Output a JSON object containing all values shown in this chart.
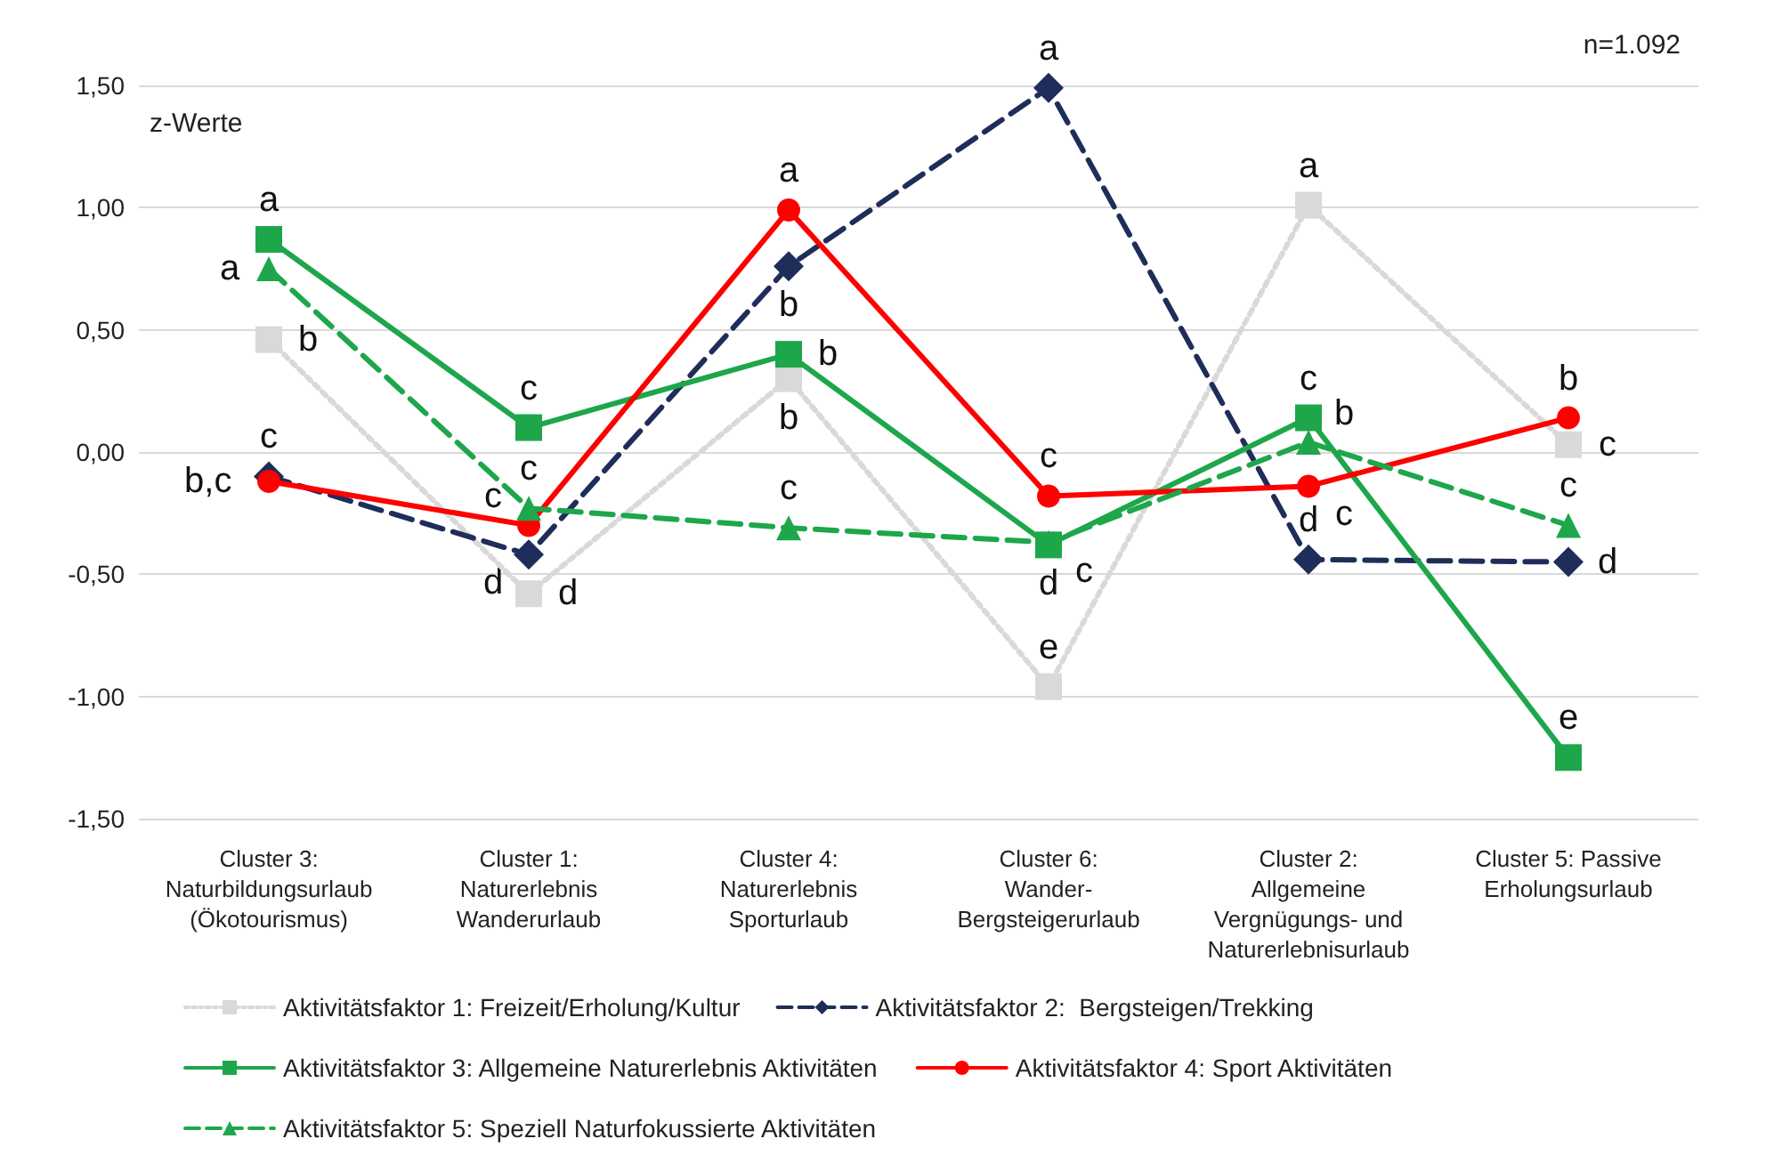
{
  "chart_data": {
    "type": "line",
    "ylabel": "z-Werte",
    "categories": [
      "Cluster 3:\nNaturbildungsurlaub\n(Ökotourismus)",
      "Cluster 1:\nNaturerlebnis\nWanderurlaub",
      "Cluster 4:\nNaturerlebnis\nSporturlaub",
      "Cluster 6:\nWander-\nBergsteigerurlaub",
      "Cluster 2:\nAllgemeine\nVergnügungs- und\nNaturerlebnisurlaub",
      "Cluster 5: Passive\nErholungsurlaub"
    ],
    "series": [
      {
        "name": "Aktivitätsfaktor 1: Freizeit/Erholung/Kultur",
        "color": "#d9d9d9",
        "line_style": "dotted",
        "marker": "square",
        "values": [
          0.46,
          -0.58,
          0.3,
          -0.96,
          1.01,
          0.03
        ]
      },
      {
        "name": "Aktivitätsfaktor 2:  Bergsteigen/Trekking",
        "color": "#1f2d5a",
        "line_style": "dashed",
        "marker": "diamond",
        "values": [
          -0.1,
          -0.42,
          0.76,
          1.49,
          -0.44,
          -0.45
        ]
      },
      {
        "name": "Aktivitätsfaktor 3: Allgemeine Naturerlebnis Aktivitäten",
        "color": "#1ea64b",
        "line_style": "solid",
        "marker": "square",
        "values": [
          0.87,
          0.1,
          0.4,
          -0.38,
          0.14,
          -1.25
        ]
      },
      {
        "name": "Aktivitätsfaktor 4: Sport Aktivitäten",
        "color": "#ff0000",
        "line_style": "solid",
        "marker": "circle",
        "values": [
          -0.12,
          -0.3,
          0.99,
          -0.18,
          -0.14,
          0.14
        ]
      },
      {
        "name": "Aktivitätsfaktor 5: Speziell Naturfokussierte Aktivitäten",
        "color": "#1ea64b",
        "line_style": "dashed",
        "marker": "triangle",
        "values": [
          0.75,
          -0.23,
          -0.31,
          -0.37,
          0.04,
          -0.3
        ]
      }
    ],
    "ylim": [
      -1.5,
      1.5
    ],
    "yticks": [
      {
        "value": -1.5,
        "label": "-1,50"
      },
      {
        "value": -1,
        "label": "-1,00"
      },
      {
        "value": -0.5,
        "label": "-0,50"
      },
      {
        "value": 0,
        "label": "0,00"
      },
      {
        "value": 0.5,
        "label": "0,50"
      },
      {
        "value": 1,
        "label": "1,00"
      },
      {
        "value": 1.5,
        "label": "1,50"
      }
    ],
    "grid": "y",
    "legend": "bottom",
    "annotations": [
      "n=1.092",
      {
        "text": "a",
        "x": "Cluster 3:\nNaturbildungsurlaub\n(Ökotourismus)",
        "y": 0.87
      },
      {
        "text": "a",
        "x": "Cluster 3:\nNaturbildungsurlaub\n(Ökotourismus)",
        "y": 0.75
      },
      {
        "text": "b",
        "x": "Cluster 3:\nNaturbildungsurlaub\n(Ökotourismus)",
        "y": 0.46
      },
      {
        "text": "c",
        "x": "Cluster 3:\nNaturbildungsurlaub\n(Ökotourismus)",
        "y": -0.1
      },
      {
        "text": "b,c",
        "x": "Cluster 3:\nNaturbildungsurlaub\n(Ökotourismus)",
        "y": -0.12
      },
      {
        "text": "c",
        "x": "Cluster 1:\nNaturerlebnis\nWanderurlaub",
        "y": 0.1
      },
      {
        "text": "c",
        "x": "Cluster 1:\nNaturerlebnis\nWanderurlaub",
        "y": -0.23
      },
      {
        "text": "c",
        "x": "Cluster 1:\nNaturerlebnis\nWanderurlaub",
        "y": -0.3
      },
      {
        "text": "d",
        "x": "Cluster 1:\nNaturerlebnis\nWanderurlaub",
        "y": -0.42
      },
      {
        "text": "d",
        "x": "Cluster 1:\nNaturerlebnis\nWanderurlaub",
        "y": -0.58
      },
      {
        "text": "a",
        "x": "Cluster 4:\nNaturerlebnis\nSporturlaub",
        "y": 0.99
      },
      {
        "text": "b",
        "x": "Cluster 4:\nNaturerlebnis\nSporturlaub",
        "y": 0.76
      },
      {
        "text": "b",
        "x": "Cluster 4:\nNaturerlebnis\nSporturlaub",
        "y": 0.4
      },
      {
        "text": "b",
        "x": "Cluster 4:\nNaturerlebnis\nSporturlaub",
        "y": 0.3
      },
      {
        "text": "c",
        "x": "Cluster 4:\nNaturerlebnis\nSporturlaub",
        "y": -0.31
      },
      {
        "text": "a",
        "x": "Cluster 6:\nWander-\nBergsteigerurlaub",
        "y": 1.49
      },
      {
        "text": "c",
        "x": "Cluster 6:\nWander-\nBergsteigerurlaub",
        "y": -0.18
      },
      {
        "text": "d",
        "x": "Cluster 6:\nWander-\nBergsteigerurlaub",
        "y": -0.38
      },
      {
        "text": "c",
        "x": "Cluster 6:\nWander-\nBergsteigerurlaub",
        "y": -0.37
      },
      {
        "text": "e",
        "x": "Cluster 6:\nWander-\nBergsteigerurlaub",
        "y": -0.96
      },
      {
        "text": "a",
        "x": "Cluster 2:\nAllgemeine\nVergnügungs- und\nNaturerlebnisurlaub",
        "y": 1.01
      },
      {
        "text": "c",
        "x": "Cluster 2:\nAllgemeine\nVergnügungs- und\nNaturerlebnisurlaub",
        "y": 0.14
      },
      {
        "text": "b",
        "x": "Cluster 2:\nAllgemeine\nVergnügungs- und\nNaturerlebnisurlaub",
        "y": 0.04
      },
      {
        "text": "c",
        "x": "Cluster 2:\nAllgemeine\nVergnügungs- und\nNaturerlebnisurlaub",
        "y": -0.14
      },
      {
        "text": "d",
        "x": "Cluster 2:\nAllgemeine\nVergnügungs- und\nNaturerlebnisurlaub",
        "y": -0.44
      },
      {
        "text": "b",
        "x": "Cluster 5: Passive\nErholungsurlaub",
        "y": 0.14
      },
      {
        "text": "c",
        "x": "Cluster 5: Passive\nErholungsurlaub",
        "y": 0.03
      },
      {
        "text": "c",
        "x": "Cluster 5: Passive\nErholungsurlaub",
        "y": -0.3
      },
      {
        "text": "d",
        "x": "Cluster 5: Passive\nErholungsurlaub",
        "y": -0.45
      },
      {
        "text": "e",
        "x": "Cluster 5: Passive\nErholungsurlaub",
        "y": -1.25
      }
    ]
  }
}
